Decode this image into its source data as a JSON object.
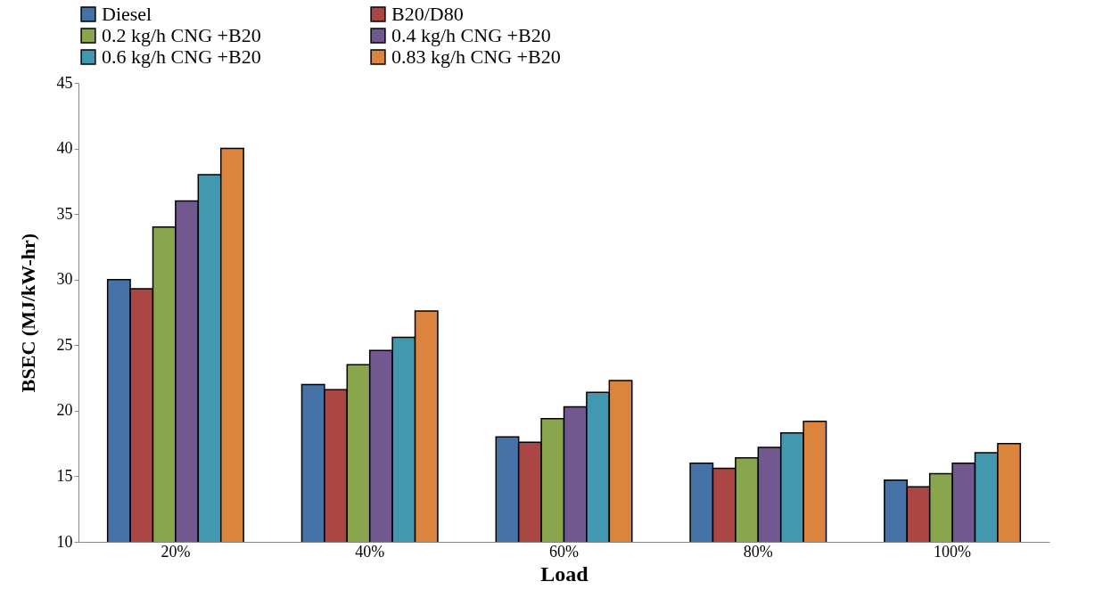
{
  "chart_data": {
    "type": "bar",
    "xlabel": "Load",
    "ylabel": "BSEC  (MJ/kW-hr)",
    "categories": [
      "20%",
      "40%",
      "60%",
      "80%",
      "100%"
    ],
    "series": [
      {
        "name": "Diesel",
        "color": "#4572a7",
        "values": [
          30,
          22,
          18,
          16,
          14.7
        ]
      },
      {
        "name": "B20/D80",
        "color": "#aa4643",
        "values": [
          29.3,
          21.6,
          17.6,
          15.6,
          14.2
        ]
      },
      {
        "name": "0.2 kg/h CNG +B20",
        "color": "#89a54e",
        "values": [
          34,
          23.5,
          19.4,
          16.4,
          15.2
        ]
      },
      {
        "name": "0.4 kg/h CNG +B20",
        "color": "#71588f",
        "values": [
          36,
          24.6,
          20.3,
          17.2,
          16
        ]
      },
      {
        "name": "0.6 kg/h CNG +B20",
        "color": "#4198af",
        "values": [
          38,
          25.6,
          21.4,
          18.3,
          16.8
        ]
      },
      {
        "name": "0.83 kg/h CNG +B20",
        "color": "#db843d",
        "values": [
          40,
          27.6,
          22.3,
          19.2,
          17.5
        ]
      }
    ],
    "ylim": [
      10,
      45
    ],
    "yticks": [
      10,
      15,
      20,
      25,
      30,
      35,
      40,
      45
    ],
    "grid": false,
    "legend": "top"
  }
}
